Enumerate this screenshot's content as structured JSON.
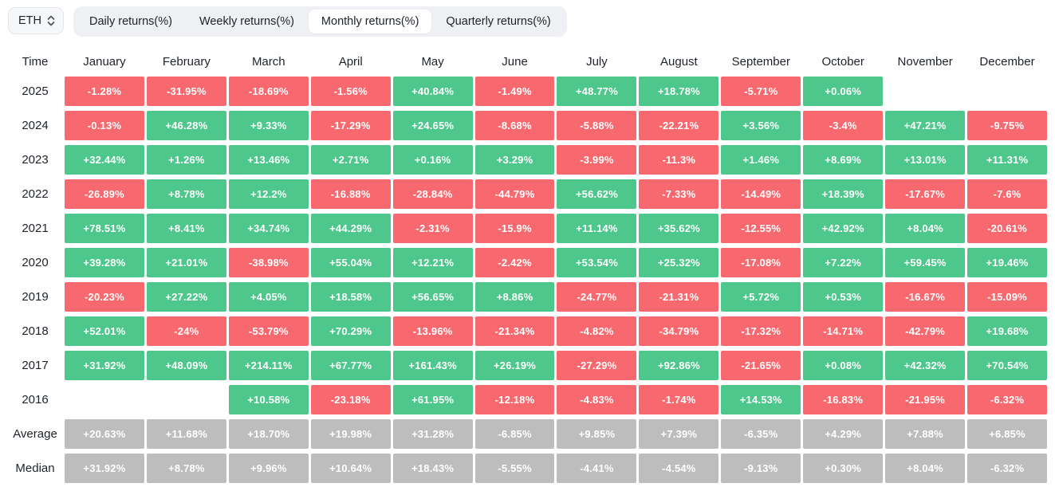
{
  "selector": {
    "label": "ETH"
  },
  "tabs": {
    "items": [
      {
        "label": "Daily returns(%)",
        "active": false
      },
      {
        "label": "Weekly returns(%)",
        "active": false
      },
      {
        "label": "Monthly returns(%)",
        "active": true
      },
      {
        "label": "Quarterly returns(%)",
        "active": false
      }
    ]
  },
  "colors": {
    "positive": "#4ec78d",
    "negative": "#f7696e",
    "neutral": "#bdbdbd",
    "header_text": "#1e2329"
  },
  "chart_data": {
    "type": "heatmap",
    "title": "Monthly returns(%)",
    "asset": "ETH",
    "legend_position": "none",
    "columns": [
      "Time",
      "January",
      "February",
      "March",
      "April",
      "May",
      "June",
      "July",
      "August",
      "September",
      "October",
      "November",
      "December"
    ],
    "rows": [
      {
        "label": "2025",
        "kind": "year",
        "values": [
          "-1.28%",
          "-31.95%",
          "-18.69%",
          "-1.56%",
          "+40.84%",
          "-1.49%",
          "+48.77%",
          "+18.78%",
          "-5.71%",
          "+0.06%",
          "",
          ""
        ]
      },
      {
        "label": "2024",
        "kind": "year",
        "values": [
          "-0.13%",
          "+46.28%",
          "+9.33%",
          "-17.29%",
          "+24.65%",
          "-8.68%",
          "-5.88%",
          "-22.21%",
          "+3.56%",
          "-3.4%",
          "+47.21%",
          "-9.75%"
        ]
      },
      {
        "label": "2023",
        "kind": "year",
        "values": [
          "+32.44%",
          "+1.26%",
          "+13.46%",
          "+2.71%",
          "+0.16%",
          "+3.29%",
          "-3.99%",
          "-11.3%",
          "+1.46%",
          "+8.69%",
          "+13.01%",
          "+11.31%"
        ]
      },
      {
        "label": "2022",
        "kind": "year",
        "values": [
          "-26.89%",
          "+8.78%",
          "+12.2%",
          "-16.88%",
          "-28.84%",
          "-44.79%",
          "+56.62%",
          "-7.33%",
          "-14.49%",
          "+18.39%",
          "-17.67%",
          "-7.6%"
        ]
      },
      {
        "label": "2021",
        "kind": "year",
        "values": [
          "+78.51%",
          "+8.41%",
          "+34.74%",
          "+44.29%",
          "-2.31%",
          "-15.9%",
          "+11.14%",
          "+35.62%",
          "-12.55%",
          "+42.92%",
          "+8.04%",
          "-20.61%"
        ]
      },
      {
        "label": "2020",
        "kind": "year",
        "values": [
          "+39.28%",
          "+21.01%",
          "-38.98%",
          "+55.04%",
          "+12.21%",
          "-2.42%",
          "+53.54%",
          "+25.32%",
          "-17.08%",
          "+7.22%",
          "+59.45%",
          "+19.46%"
        ]
      },
      {
        "label": "2019",
        "kind": "year",
        "values": [
          "-20.23%",
          "+27.22%",
          "+4.05%",
          "+18.58%",
          "+56.65%",
          "+8.86%",
          "-24.77%",
          "-21.31%",
          "+5.72%",
          "+0.53%",
          "-16.67%",
          "-15.09%"
        ]
      },
      {
        "label": "2018",
        "kind": "year",
        "values": [
          "+52.01%",
          "-24%",
          "-53.79%",
          "+70.29%",
          "-13.96%",
          "-21.34%",
          "-4.82%",
          "-34.79%",
          "-17.32%",
          "-14.71%",
          "-42.79%",
          "+19.68%"
        ]
      },
      {
        "label": "2017",
        "kind": "year",
        "values": [
          "+31.92%",
          "+48.09%",
          "+214.11%",
          "+67.77%",
          "+161.43%",
          "+26.19%",
          "-27.29%",
          "+92.86%",
          "-21.65%",
          "+0.08%",
          "+42.32%",
          "+70.54%"
        ]
      },
      {
        "label": "2016",
        "kind": "year",
        "values": [
          "",
          "",
          "+10.58%",
          "-23.18%",
          "+61.95%",
          "-12.18%",
          "-4.83%",
          "-1.74%",
          "+14.53%",
          "-16.83%",
          "-21.95%",
          "-6.32%"
        ]
      },
      {
        "label": "Average",
        "kind": "stat",
        "values": [
          "+20.63%",
          "+11.68%",
          "+18.70%",
          "+19.98%",
          "+31.28%",
          "-6.85%",
          "+9.85%",
          "+7.39%",
          "-6.35%",
          "+4.29%",
          "+7.88%",
          "+6.85%"
        ]
      },
      {
        "label": "Median",
        "kind": "stat",
        "values": [
          "+31.92%",
          "+8.78%",
          "+9.96%",
          "+10.64%",
          "+18.43%",
          "-5.55%",
          "-4.41%",
          "-4.54%",
          "-9.13%",
          "+0.30%",
          "+8.04%",
          "-6.32%"
        ]
      }
    ]
  }
}
